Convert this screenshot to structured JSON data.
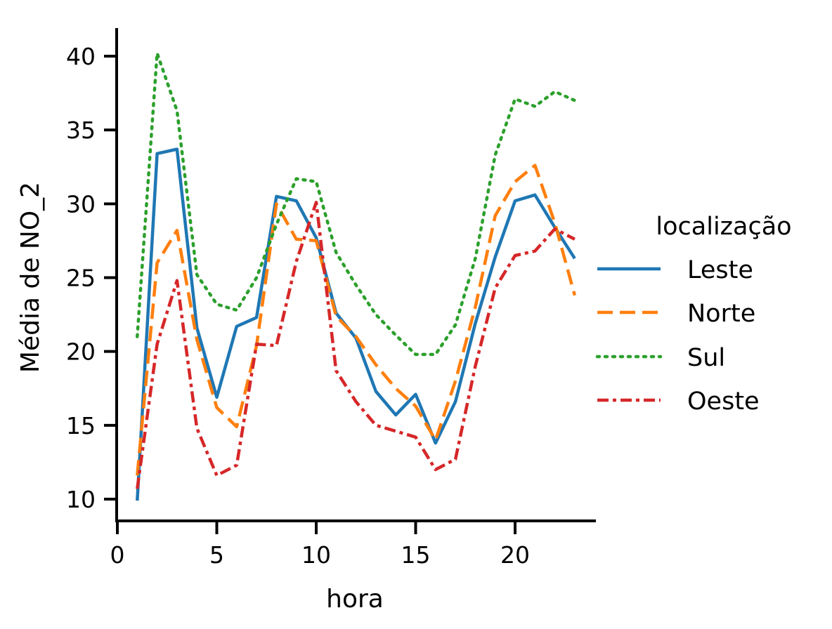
{
  "chart_data": {
    "type": "line",
    "title": "",
    "xlabel": "hora",
    "ylabel": "Média de NO_2",
    "xlim": [
      0,
      24
    ],
    "ylim": [
      9,
      42
    ],
    "x_ticks": [
      0,
      5,
      10,
      15,
      20
    ],
    "y_ticks": [
      10,
      15,
      20,
      25,
      30,
      35,
      40
    ],
    "grid": false,
    "legend_position": "right",
    "legend_title": "localização",
    "x": [
      1,
      2,
      3,
      4,
      5,
      6,
      7,
      8,
      9,
      10,
      11,
      12,
      13,
      14,
      15,
      16,
      17,
      18,
      19,
      20,
      21,
      22,
      23
    ],
    "series": [
      {
        "name": "Leste",
        "color": "#1f77b4",
        "dash": "solid",
        "values": [
          9.9,
          33.4,
          33.7,
          21.6,
          16.9,
          21.7,
          22.3,
          30.5,
          30.2,
          27.7,
          22.6,
          20.9,
          17.3,
          15.7,
          17.1,
          13.8,
          16.6,
          21.9,
          26.4,
          30.2,
          30.6,
          28.4,
          26.3
        ]
      },
      {
        "name": "Norte",
        "color": "#ff7f0e",
        "dash": "dashed",
        "values": [
          11.6,
          26.0,
          28.2,
          20.8,
          16.2,
          14.9,
          20.4,
          30.0,
          27.6,
          27.5,
          22.4,
          21.0,
          19.1,
          17.5,
          16.3,
          14.0,
          18.0,
          23.0,
          29.2,
          31.5,
          32.6,
          28.7,
          23.8
        ]
      },
      {
        "name": "Sul",
        "color": "#2ca02c",
        "dash": "dotted",
        "values": [
          21.0,
          40.2,
          36.3,
          25.2,
          23.2,
          22.8,
          25.0,
          28.6,
          31.7,
          31.5,
          26.7,
          24.5,
          22.5,
          21.1,
          19.8,
          19.8,
          21.8,
          26.3,
          33.3,
          37.1,
          36.6,
          37.6,
          37.0
        ]
      },
      {
        "name": "Oeste",
        "color": "#d62728",
        "dash": "dashdot",
        "values": [
          10.7,
          20.5,
          24.8,
          14.8,
          11.6,
          12.3,
          20.5,
          20.4,
          26.1,
          30.1,
          18.7,
          16.6,
          15.0,
          14.6,
          14.2,
          12.0,
          12.7,
          19.0,
          24.3,
          26.5,
          26.8,
          28.3,
          27.6
        ]
      }
    ]
  }
}
